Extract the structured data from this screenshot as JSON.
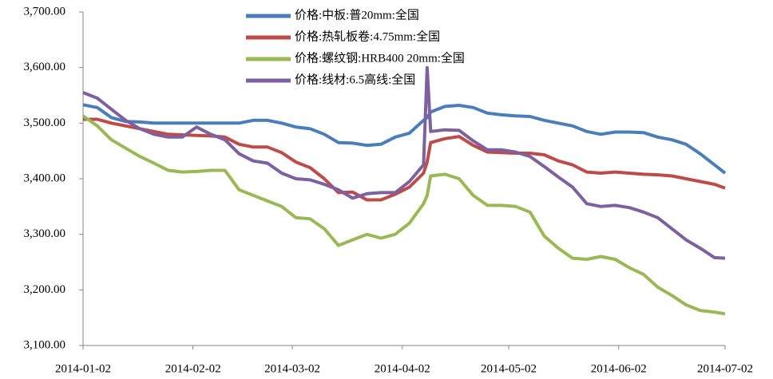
{
  "chart_data": {
    "type": "line",
    "x": [
      "2014-01-02",
      "2014-01-06",
      "2014-01-10",
      "2014-01-14",
      "2014-01-18",
      "2014-01-22",
      "2014-01-26",
      "2014-01-30",
      "2014-02-03",
      "2014-02-07",
      "2014-02-11",
      "2014-02-15",
      "2014-02-19",
      "2014-02-23",
      "2014-02-27",
      "2014-03-03",
      "2014-03-07",
      "2014-03-11",
      "2014-03-15",
      "2014-03-19",
      "2014-03-23",
      "2014-03-27",
      "2014-03-31",
      "2014-04-04",
      "2014-04-08",
      "2014-04-09",
      "2014-04-10",
      "2014-04-14",
      "2014-04-18",
      "2014-04-22",
      "2014-04-26",
      "2014-04-30",
      "2014-05-04",
      "2014-05-08",
      "2014-05-12",
      "2014-05-16",
      "2014-05-20",
      "2014-05-24",
      "2014-05-28",
      "2014-06-01",
      "2014-06-05",
      "2014-06-09",
      "2014-06-13",
      "2014-06-17",
      "2014-06-21",
      "2014-06-25",
      "2014-06-29",
      "2014-07-02"
    ],
    "series": [
      {
        "name": "价格:中板:普20mm:全国",
        "color": "#4a7ebb",
        "values": [
          3533,
          3528,
          3510,
          3503,
          3502,
          3500,
          3500,
          3500,
          3500,
          3500,
          3500,
          3500,
          3505,
          3505,
          3500,
          3493,
          3490,
          3480,
          3465,
          3464,
          3460,
          3462,
          3475,
          3482,
          3505,
          3510,
          3520,
          3530,
          3532,
          3528,
          3518,
          3515,
          3513,
          3512,
          3505,
          3500,
          3495,
          3485,
          3480,
          3484,
          3484,
          3483,
          3475,
          3470,
          3462,
          3445,
          3425,
          3410
        ]
      },
      {
        "name": "价格:热轧板卷:4.75mm:全国",
        "color": "#be4b48",
        "values": [
          3507,
          3507,
          3500,
          3495,
          3490,
          3485,
          3480,
          3479,
          3478,
          3477,
          3475,
          3462,
          3457,
          3457,
          3447,
          3430,
          3420,
          3400,
          3375,
          3376,
          3362,
          3362,
          3372,
          3385,
          3410,
          3430,
          3465,
          3472,
          3476,
          3460,
          3448,
          3447,
          3446,
          3446,
          3443,
          3432,
          3425,
          3412,
          3410,
          3412,
          3410,
          3408,
          3407,
          3405,
          3400,
          3395,
          3390,
          3383
        ]
      },
      {
        "name": "价格:螺纹钢:HRB400 20mm:全国",
        "color": "#98b954",
        "values": [
          3513,
          3495,
          3470,
          3455,
          3440,
          3428,
          3415,
          3412,
          3413,
          3415,
          3415,
          3380,
          3370,
          3360,
          3350,
          3330,
          3328,
          3310,
          3280,
          3290,
          3300,
          3293,
          3300,
          3320,
          3355,
          3370,
          3405,
          3408,
          3400,
          3370,
          3352,
          3352,
          3350,
          3340,
          3297,
          3275,
          3257,
          3255,
          3260,
          3255,
          3240,
          3228,
          3205,
          3190,
          3173,
          3163,
          3160,
          3157
        ]
      },
      {
        "name": "价格:线材:6.5高线:全国",
        "color": "#7d60a0",
        "values": [
          3555,
          3545,
          3525,
          3505,
          3490,
          3480,
          3475,
          3475,
          3493,
          3480,
          3470,
          3445,
          3432,
          3428,
          3410,
          3400,
          3398,
          3390,
          3380,
          3365,
          3373,
          3375,
          3375,
          3395,
          3425,
          3600,
          3485,
          3488,
          3487,
          3468,
          3452,
          3452,
          3448,
          3440,
          3422,
          3403,
          3385,
          3355,
          3350,
          3352,
          3348,
          3340,
          3330,
          3310,
          3290,
          3275,
          3258,
          3257
        ]
      }
    ],
    "xlim": [
      "2014-01-02",
      "2014-07-02"
    ],
    "xticks": [
      "2014-01-02",
      "2014-02-02",
      "2014-03-02",
      "2014-04-02",
      "2014-05-02",
      "2014-06-02",
      "2014-07-02"
    ],
    "ylim": [
      3100,
      3700
    ],
    "yticks": [
      {
        "value": 3100,
        "label": "3,100.00"
      },
      {
        "value": 3200,
        "label": "3,200.00"
      },
      {
        "value": 3300,
        "label": "3,300.00"
      },
      {
        "value": 3400,
        "label": "3,400.00"
      },
      {
        "value": 3500,
        "label": "3,500.00"
      },
      {
        "value": 3600,
        "label": "3,600.00"
      },
      {
        "value": 3700,
        "label": "3,700.00"
      }
    ],
    "grid": false,
    "legend": "top"
  }
}
